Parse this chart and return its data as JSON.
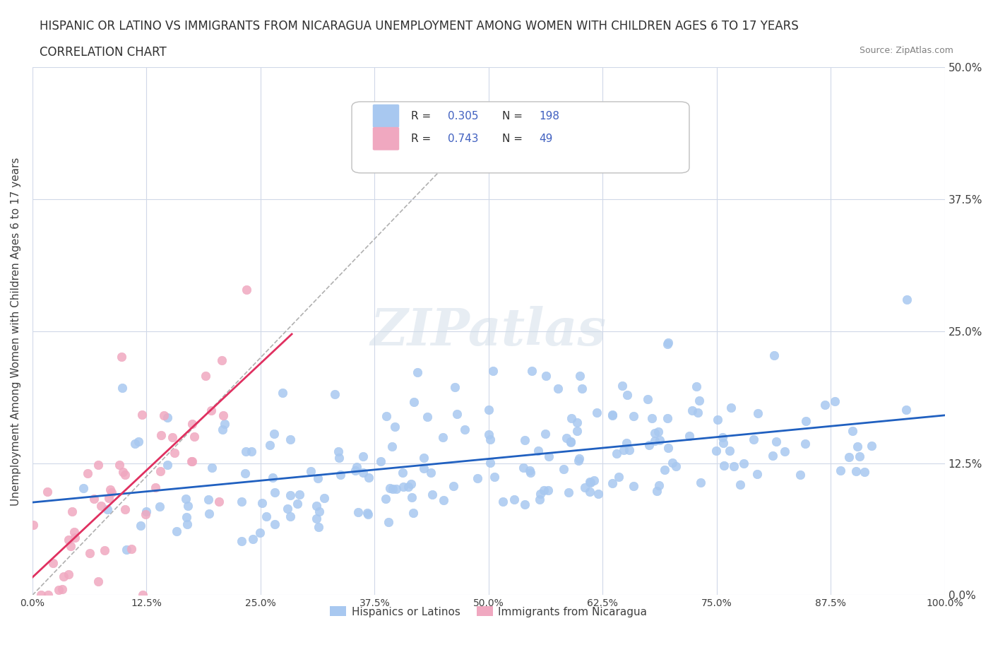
{
  "title_line1": "HISPANIC OR LATINO VS IMMIGRANTS FROM NICARAGUA UNEMPLOYMENT AMONG WOMEN WITH CHILDREN AGES 6 TO 17 YEARS",
  "title_line2": "CORRELATION CHART",
  "source_text": "Source: ZipAtlas.com",
  "xlabel": "",
  "ylabel": "Unemployment Among Women with Children Ages 6 to 17 years",
  "xlim": [
    0.0,
    1.0
  ],
  "ylim": [
    0.0,
    0.5
  ],
  "xtick_labels": [
    "0.0%",
    "12.5%",
    "25.0%",
    "37.5%",
    "50.0%",
    "62.5%",
    "75.0%",
    "87.5%",
    "100.0%"
  ],
  "xtick_values": [
    0.0,
    0.125,
    0.25,
    0.375,
    0.5,
    0.625,
    0.75,
    0.875,
    1.0
  ],
  "ytick_labels": [
    "0.0%",
    "12.5%",
    "25.0%",
    "37.5%",
    "50.0%"
  ],
  "ytick_values": [
    0.0,
    0.125,
    0.25,
    0.375,
    0.5
  ],
  "blue_color": "#a8c8f0",
  "pink_color": "#f0a8c0",
  "blue_line_color": "#2060c0",
  "pink_line_color": "#e03060",
  "trend_line_color": "#b0b0b0",
  "watermark": "ZIPatlas",
  "R_blue": 0.305,
  "N_blue": 198,
  "R_pink": 0.743,
  "N_pink": 49,
  "legend_label_blue": "Hispanics or Latinos",
  "legend_label_pink": "Immigrants from Nicaragua",
  "label_color": "#4060c0",
  "background_color": "#ffffff",
  "grid_color": "#d0d8e8"
}
